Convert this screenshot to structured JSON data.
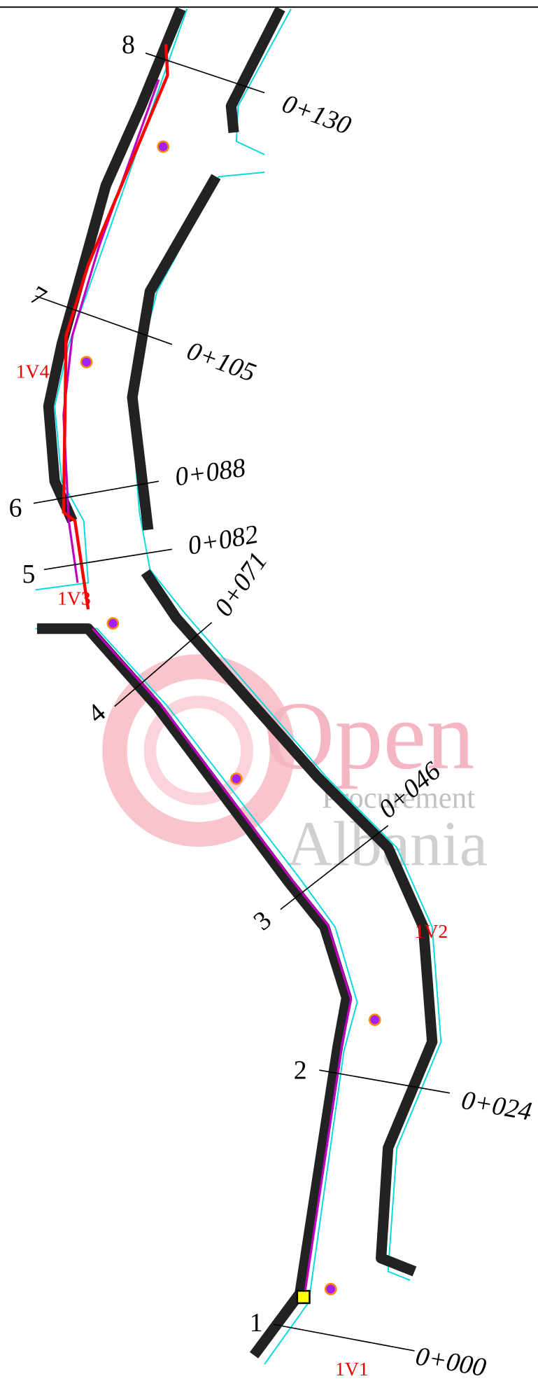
{
  "sections": [
    {
      "number": "1",
      "chainage": "0+000"
    },
    {
      "number": "2",
      "chainage": "0+024"
    },
    {
      "number": "3",
      "chainage": "0+046"
    },
    {
      "number": "4",
      "chainage": "0+071"
    },
    {
      "number": "5",
      "chainage": "0+082"
    },
    {
      "number": "6",
      "chainage": "0+088"
    },
    {
      "number": "7",
      "chainage": "0+105"
    },
    {
      "number": "8",
      "chainage": "0+130"
    }
  ],
  "manholes": [
    "1V1",
    "1V2",
    "1V3",
    "1V4"
  ],
  "watermark": {
    "line1": "Open",
    "line2": "Procurement",
    "line3": "Albania"
  }
}
